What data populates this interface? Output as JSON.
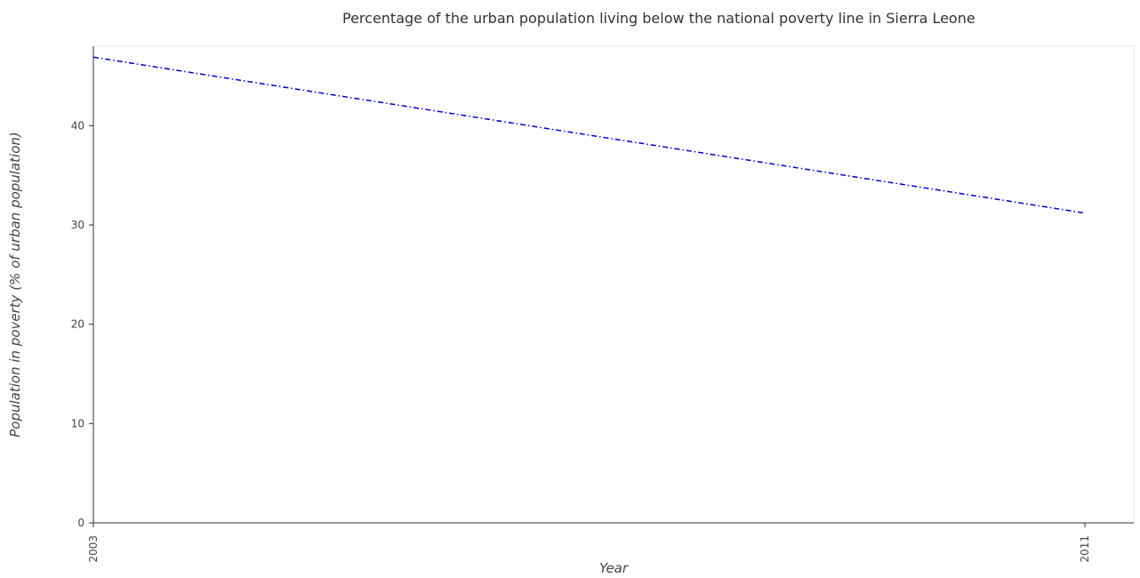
{
  "chart_data": {
    "type": "line",
    "title": "Percentage of the urban population living below the national poverty line in Sierra Leone",
    "xlabel": "Year",
    "ylabel": "Population in poverty (% of urban population)",
    "categories": [
      "2003",
      "2011"
    ],
    "series": [
      {
        "values": [
          46.9,
          31.2
        ],
        "color": "#0000cc",
        "dash": "dash-dot"
      }
    ],
    "ylim": [
      0,
      48
    ],
    "yticks": [
      0,
      10,
      20,
      30,
      40
    ],
    "ytick_labels": [
      "0",
      "10",
      "20",
      "30",
      "40"
    ],
    "grid": false
  }
}
